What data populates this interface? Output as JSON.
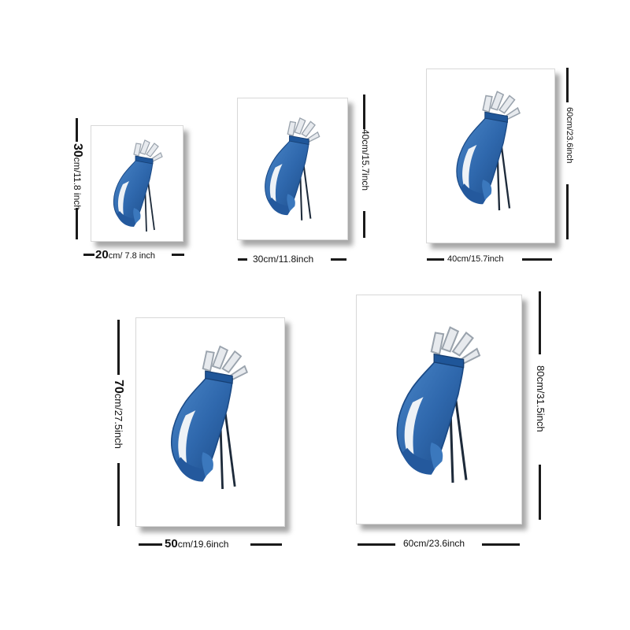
{
  "colors": {
    "bag": "#2f68ad",
    "bag_dark": "#1b4a86",
    "panel": "#eef2f6",
    "frame_shadow": "#6e6e6e"
  },
  "sizes": [
    {
      "width_num": "20",
      "width_unit": "cm/ 7.8 inch",
      "height_num": "30",
      "height_unit": "cm/11.8 inch"
    },
    {
      "width_label": "30cm/11.8inch",
      "height_label": "40cm/15.7inch"
    },
    {
      "width_label": "40cm/15.7inch",
      "height_label": "60cm/23.6inch"
    },
    {
      "width_num": "50",
      "width_unit": "cm/19.6inch",
      "height_num": "70",
      "height_unit": "cm/27.5inch"
    },
    {
      "width_label": "60cm/23.6inch",
      "height_label": "80cm/31.5inch"
    }
  ]
}
